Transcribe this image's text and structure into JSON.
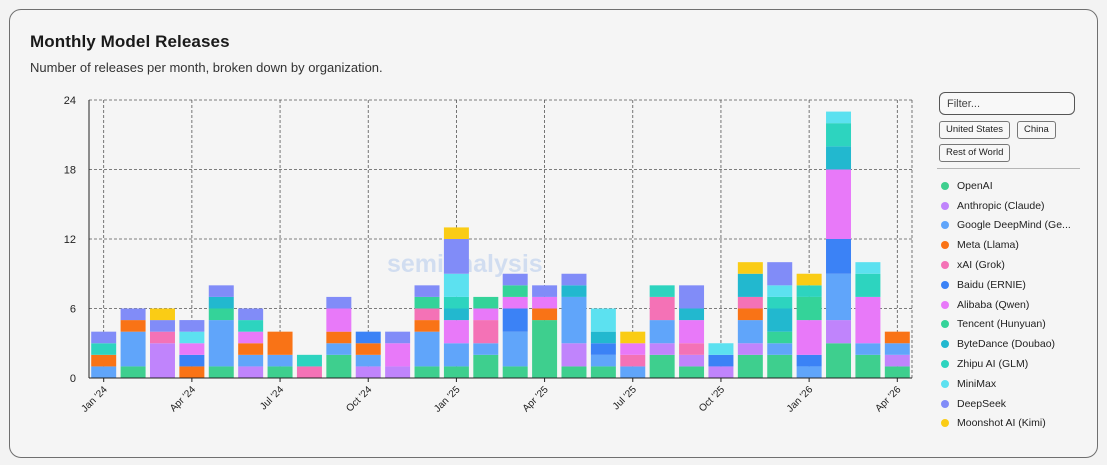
{
  "header": {
    "title": "Monthly Model Releases",
    "subtitle": "Number of releases per month, broken down by organization."
  },
  "filters": {
    "placeholder": "Filter...",
    "chips": [
      "United States",
      "China",
      "Rest of World"
    ]
  },
  "watermark": "semianalysis",
  "colors": {
    "OpenAI": "#3ecf8e",
    "Anthropic (Claude)": "#c084fc",
    "Google DeepMind (Gemini)": "#60a5fa",
    "Meta (Llama)": "#f97316",
    "xAI (Grok)": "#f472b6",
    "Baidu (ERNIE)": "#3b82f6",
    "Alibaba (Qwen)": "#e879f9",
    "Tencent (Hunyuan)": "#34d399",
    "ByteDance (Doubao)": "#22b8cf",
    "Zhipu AI (GLM)": "#2dd4bf",
    "MiniMax": "#5ce1f0",
    "DeepSeek": "#818cf8",
    "Moonshot AI (Kimi)": "#facc15"
  },
  "chart_data": {
    "type": "bar",
    "stacked": true,
    "title": "Monthly Model Releases",
    "subtitle": "Number of releases per month, broken down by organization.",
    "ylim": [
      0,
      24
    ],
    "yticks": [
      0,
      6,
      12,
      18,
      24
    ],
    "grid": true,
    "legend_position": "right",
    "categories": [
      "Jan '24",
      "Feb '24",
      "Mar '24",
      "Apr '24",
      "May '24",
      "Jun '24",
      "Jul '24",
      "Aug '24",
      "Sep '24",
      "Oct '24",
      "Nov '24",
      "Dec '24",
      "Jan '25",
      "Feb '25",
      "Mar '25",
      "Apr '25",
      "May '25",
      "Jun '25",
      "Jul '25",
      "Aug '25",
      "Sep '25",
      "Oct '25",
      "Nov '25",
      "Dec '25",
      "Jan '26",
      "Feb '26",
      "Mar '26",
      "Apr '26"
    ],
    "xtick_labels": [
      "Jan '24",
      "",
      "",
      "Apr '24",
      "",
      "",
      "Jul '24",
      "",
      "",
      "Oct '24",
      "",
      "",
      "Jan '25",
      "",
      "",
      "Apr '25",
      "",
      "",
      "Jul '25",
      "",
      "",
      "Oct '25",
      "",
      "",
      "Jan '26",
      "",
      "",
      "Apr '26"
    ],
    "series": [
      {
        "name": "OpenAI",
        "values": [
          0,
          1,
          0,
          0,
          1,
          0,
          1,
          0,
          2,
          0,
          0,
          1,
          1,
          2,
          1,
          5,
          1,
          1,
          0,
          2,
          1,
          0,
          2,
          2,
          0,
          3,
          2,
          1
        ]
      },
      {
        "name": "Anthropic (Claude)",
        "values": [
          0,
          0,
          3,
          0,
          0,
          1,
          0,
          0,
          0,
          1,
          1,
          0,
          0,
          0,
          0,
          0,
          2,
          0,
          0,
          1,
          1,
          1,
          1,
          0,
          0,
          2,
          0,
          1
        ]
      },
      {
        "name": "Google DeepMind (Gemini)",
        "values": [
          1,
          3,
          0,
          0,
          4,
          1,
          1,
          0,
          1,
          1,
          0,
          3,
          2,
          1,
          3,
          0,
          4,
          1,
          1,
          2,
          0,
          0,
          2,
          1,
          1,
          4,
          1,
          1
        ]
      },
      {
        "name": "Meta (Llama)",
        "values": [
          1,
          1,
          0,
          1,
          0,
          1,
          2,
          0,
          1,
          1,
          0,
          1,
          0,
          0,
          0,
          1,
          0,
          0,
          0,
          0,
          0,
          0,
          1,
          0,
          0,
          0,
          0,
          1
        ]
      },
      {
        "name": "xAI (Grok)",
        "values": [
          0,
          0,
          1,
          0,
          0,
          0,
          0,
          1,
          0,
          0,
          0,
          1,
          0,
          2,
          0,
          0,
          0,
          0,
          1,
          2,
          1,
          0,
          1,
          0,
          0,
          0,
          0,
          0
        ]
      },
      {
        "name": "Baidu (ERNIE)",
        "values": [
          0,
          0,
          0,
          1,
          0,
          0,
          0,
          0,
          0,
          1,
          0,
          0,
          0,
          0,
          2,
          0,
          0,
          1,
          0,
          0,
          0,
          1,
          0,
          0,
          1,
          3,
          0,
          0
        ]
      },
      {
        "name": "Alibaba (Qwen)",
        "values": [
          0,
          0,
          0,
          1,
          0,
          1,
          0,
          0,
          2,
          0,
          2,
          0,
          2,
          1,
          1,
          1,
          0,
          0,
          1,
          0,
          2,
          0,
          0,
          0,
          3,
          6,
          4,
          0
        ]
      },
      {
        "name": "Tencent (Hunyuan)",
        "values": [
          0,
          0,
          0,
          0,
          1,
          0,
          0,
          0,
          0,
          0,
          0,
          1,
          0,
          1,
          1,
          0,
          0,
          0,
          0,
          0,
          0,
          0,
          0,
          1,
          2,
          0,
          0,
          0
        ]
      },
      {
        "name": "ByteDance (Doubao)",
        "values": [
          0,
          0,
          0,
          0,
          1,
          0,
          0,
          0,
          0,
          0,
          0,
          0,
          1,
          0,
          0,
          0,
          1,
          1,
          0,
          0,
          1,
          0,
          2,
          2,
          0,
          2,
          0,
          0
        ]
      },
      {
        "name": "Zhipu AI (GLM)",
        "values": [
          1,
          0,
          0,
          0,
          0,
          1,
          0,
          1,
          0,
          0,
          0,
          0,
          1,
          0,
          0,
          0,
          0,
          0,
          0,
          1,
          0,
          0,
          0,
          1,
          1,
          2,
          2,
          0
        ]
      },
      {
        "name": "MiniMax",
        "values": [
          0,
          0,
          0,
          1,
          0,
          0,
          0,
          0,
          0,
          0,
          0,
          0,
          2,
          0,
          0,
          0,
          0,
          2,
          0,
          0,
          0,
          1,
          0,
          1,
          0,
          1,
          1,
          0
        ]
      },
      {
        "name": "DeepSeek",
        "values": [
          1,
          1,
          1,
          1,
          1,
          1,
          0,
          0,
          1,
          0,
          1,
          1,
          3,
          0,
          1,
          1,
          1,
          0,
          0,
          0,
          2,
          0,
          0,
          2,
          0,
          0,
          0,
          0
        ]
      },
      {
        "name": "Moonshot AI (Kimi)",
        "values": [
          0,
          0,
          1,
          0,
          0,
          0,
          0,
          0,
          0,
          0,
          0,
          0,
          1,
          0,
          0,
          0,
          0,
          0,
          1,
          0,
          0,
          0,
          1,
          0,
          1,
          0,
          0,
          0
        ]
      }
    ]
  },
  "legend": {
    "items": [
      {
        "label": "OpenAI",
        "series": "OpenAI"
      },
      {
        "label": "Anthropic (Claude)",
        "series": "Anthropic (Claude)"
      },
      {
        "label": "Google DeepMind (Ge...",
        "series": "Google DeepMind (Gemini)"
      },
      {
        "label": "Meta (Llama)",
        "series": "Meta (Llama)"
      },
      {
        "label": "xAI (Grok)",
        "series": "xAI (Grok)"
      },
      {
        "label": "Baidu (ERNIE)",
        "series": "Baidu (ERNIE)"
      },
      {
        "label": "Alibaba (Qwen)",
        "series": "Alibaba (Qwen)"
      },
      {
        "label": "Tencent (Hunyuan)",
        "series": "Tencent (Hunyuan)"
      },
      {
        "label": "ByteDance (Doubao)",
        "series": "ByteDance (Doubao)"
      },
      {
        "label": "Zhipu AI (GLM)",
        "series": "Zhipu AI (GLM)"
      },
      {
        "label": "MiniMax",
        "series": "MiniMax"
      },
      {
        "label": "DeepSeek",
        "series": "DeepSeek"
      },
      {
        "label": "Moonshot AI (Kimi)",
        "series": "Moonshot AI (Kimi)"
      }
    ]
  }
}
